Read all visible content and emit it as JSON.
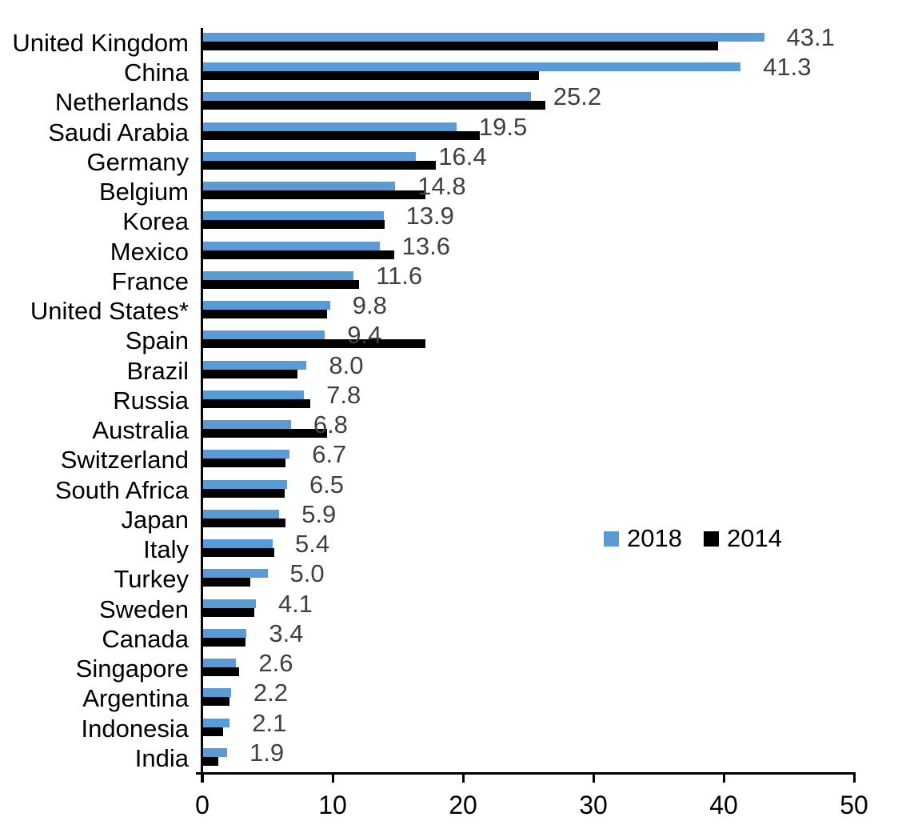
{
  "chart_data": {
    "type": "bar",
    "orientation": "horizontal",
    "title": "",
    "xlabel": "",
    "ylabel": "",
    "xlim": [
      0,
      50
    ],
    "x_ticks": [
      "0",
      "10",
      "20",
      "30",
      "40",
      "50"
    ],
    "grid": "off",
    "legend_position": "middle-right",
    "categories": [
      "United Kingdom",
      "China",
      "Netherlands",
      "Saudi Arabia",
      "Germany",
      "Belgium",
      "Korea",
      "Mexico",
      "France",
      "United States*",
      "Spain",
      "Brazil",
      "Russia",
      "Australia",
      "Switzerland",
      "South Africa",
      "Japan",
      "Italy",
      "Turkey",
      "Sweden",
      "Canada",
      "Singapore",
      "Argentina",
      "Indonesia",
      "India"
    ],
    "series": [
      {
        "name": "2018",
        "color": "#5B9BD5",
        "values": [
          43.1,
          41.3,
          25.2,
          19.5,
          16.4,
          14.8,
          13.9,
          13.6,
          11.6,
          9.8,
          9.4,
          8.0,
          7.8,
          6.8,
          6.7,
          6.5,
          5.9,
          5.4,
          5.0,
          4.1,
          3.4,
          2.6,
          2.2,
          2.1,
          1.9
        ]
      },
      {
        "name": "2014",
        "color": "#000000",
        "values": [
          39.6,
          25.8,
          26.3,
          21.3,
          17.9,
          17.1,
          14.0,
          14.7,
          12.0,
          9.6,
          17.1,
          7.3,
          8.3,
          9.6,
          6.4,
          6.3,
          6.4,
          5.5,
          3.7,
          4.0,
          3.3,
          2.8,
          2.1,
          1.6,
          1.2
        ]
      }
    ],
    "data_labels": [
      "43.1",
      "41.3",
      "25.2",
      "19.5",
      "16.4",
      "14.8",
      "13.9",
      "13.6",
      "11.6",
      "9.8",
      "9.4",
      "8.0",
      "7.8",
      "6.8",
      "6.7",
      "6.5",
      "5.9",
      "5.4",
      "5.0",
      "4.1",
      "3.4",
      "2.6",
      "2.2",
      "2.1",
      "1.9"
    ],
    "data_label_series": "2018",
    "data_label_color": "#404040"
  }
}
